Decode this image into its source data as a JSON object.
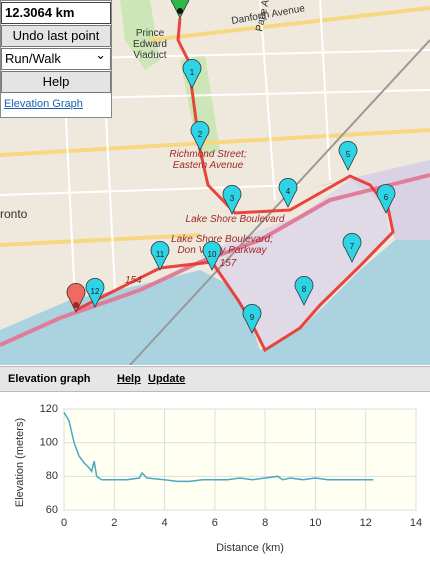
{
  "toolbar": {
    "distance": "12.3064 km",
    "undo": "Undo last point",
    "mode": "Run/Walk",
    "help": "Help",
    "elevation_link": "Elevation Graph"
  },
  "map": {
    "labels": [
      "Danforth Avenue",
      "Pape Avenue",
      "Prince",
      "Edward",
      "Viaduct",
      "Richmond Street;",
      "Eastern Avenue",
      "Lake Shore Boulevard",
      "Lake Shore Boulevard;",
      "Don Valley Parkway",
      "157",
      "154",
      "ronto"
    ],
    "markers": [
      "1",
      "2",
      "3",
      "4",
      "5",
      "6",
      "7",
      "8",
      "9",
      "10",
      "11",
      "12"
    ]
  },
  "elevation_panel": {
    "title": "Elevation graph",
    "help": "Help",
    "update": "Update"
  },
  "chart_data": {
    "type": "line",
    "x_label": "Distance (km)",
    "y_label": "Elevation (meters)",
    "x": [
      0,
      0.2,
      0.4,
      0.6,
      0.8,
      1.0,
      1.1,
      1.2,
      1.3,
      1.5,
      2,
      2.5,
      3,
      3.1,
      3.3,
      4,
      4.5,
      5,
      5.5,
      6,
      6.5,
      7,
      7.5,
      8,
      8.5,
      8.7,
      9,
      9.5,
      10,
      10.5,
      11,
      11.5,
      12,
      12.3
    ],
    "values": [
      118,
      113,
      100,
      92,
      88,
      85,
      83,
      89,
      80,
      78,
      78,
      78,
      79,
      82,
      79,
      78,
      77,
      77,
      78,
      78,
      78,
      79,
      78,
      79,
      80,
      78,
      79,
      78,
      79,
      78,
      78,
      78,
      78,
      78
    ],
    "color": "#4aa8c4",
    "xlim": [
      0,
      14
    ],
    "xticks": [
      0,
      2,
      4,
      6,
      8,
      10,
      12,
      14
    ],
    "ylim": [
      60,
      120
    ],
    "yticks": [
      60,
      80,
      100,
      120
    ],
    "grid": true
  }
}
